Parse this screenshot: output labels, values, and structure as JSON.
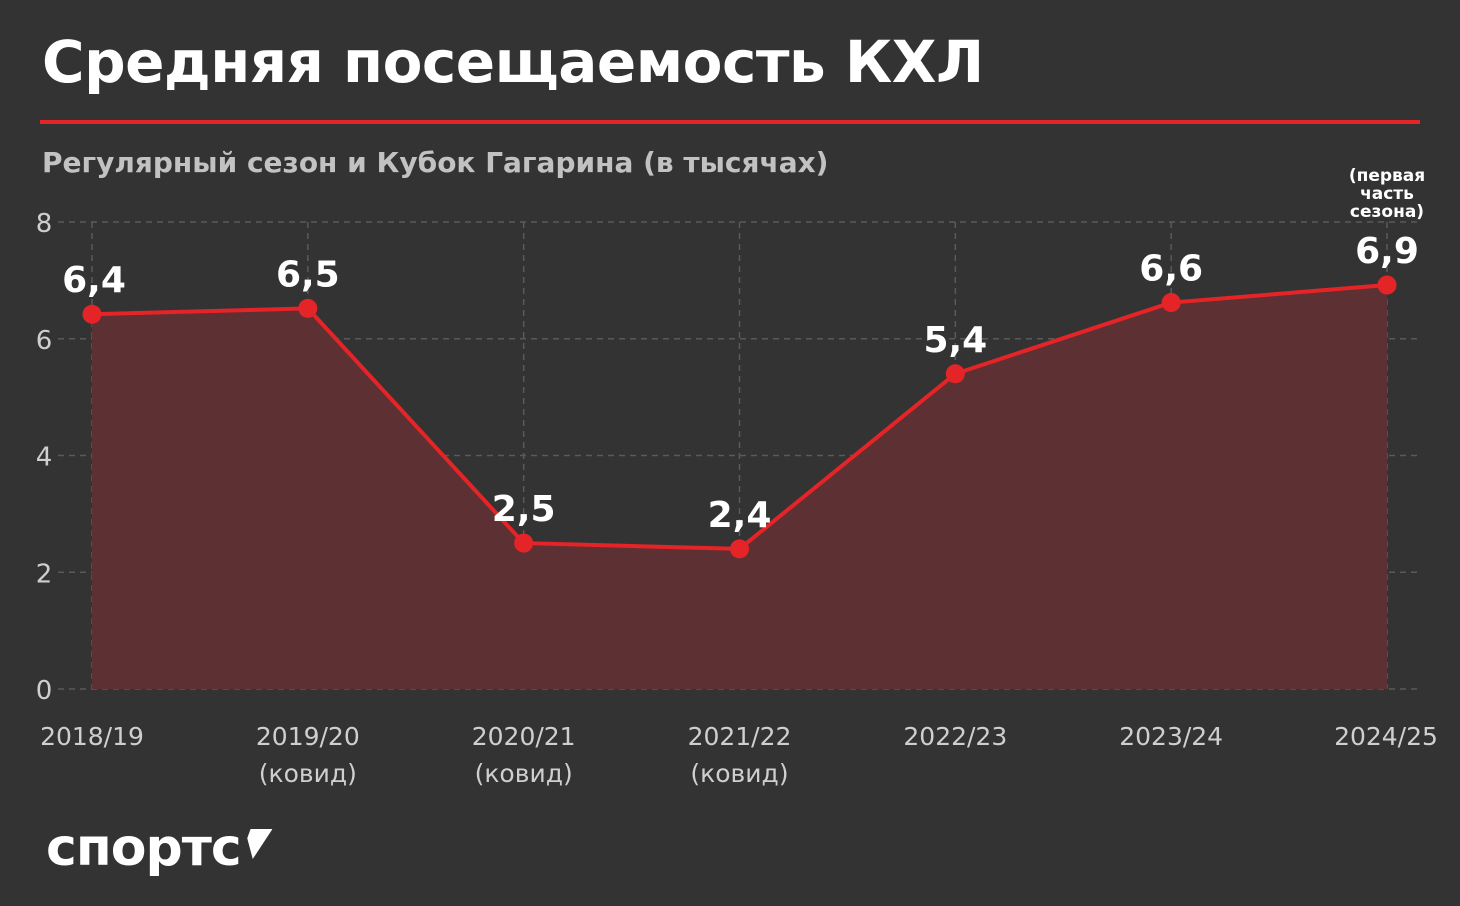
{
  "header": {
    "title": "Средняя посещаемость КХЛ",
    "subtitle": "Регулярный сезон и Кубок Гагарина (в тысячах)"
  },
  "brand": {
    "name": "спортс"
  },
  "colors": {
    "background": "#333333",
    "accent": "#e52428",
    "area_fill": "#5d3033",
    "grid": "#5a5a5a",
    "axis_text": "#cfcfcf"
  },
  "chart_data": {
    "type": "area",
    "categories": [
      "2018/19",
      "2019/20",
      "2020/21",
      "2021/22",
      "2022/23",
      "2023/24",
      "2024/25"
    ],
    "category_notes": [
      "",
      "(ковид)",
      "(ковид)",
      "(ковид)",
      "",
      "",
      ""
    ],
    "values": [
      6.42,
      6.52,
      2.5,
      2.4,
      5.4,
      6.62,
      6.92
    ],
    "data_labels": [
      "6,4",
      "6,5",
      "2,5",
      "2,4",
      "5,4",
      "6,6",
      "6,9"
    ],
    "annotations": [
      {
        "category": "2024/25",
        "lines": [
          "(первая",
          "часть",
          "сезона)"
        ]
      }
    ],
    "y_ticks": [
      0,
      2,
      4,
      6,
      8
    ],
    "ylim": [
      0,
      8
    ],
    "grid": true,
    "legend": "none"
  }
}
